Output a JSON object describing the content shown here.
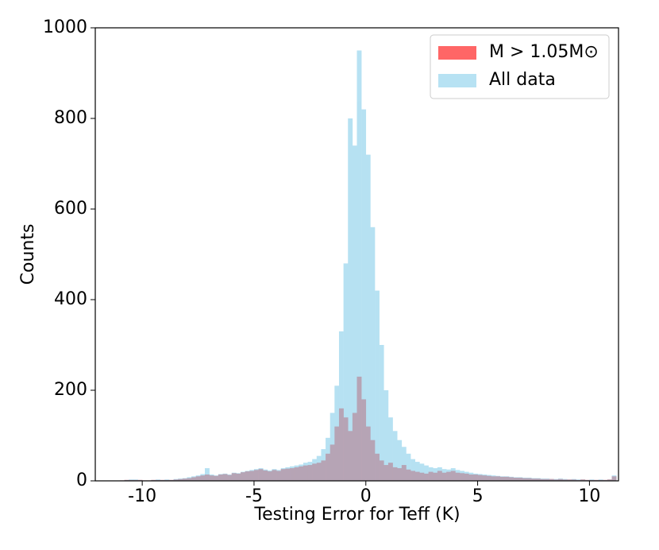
{
  "chart_data": {
    "type": "histogram",
    "x_label": "Testing Error for Teff (K)",
    "y_label": "Counts",
    "bins": [
      -11.2,
      -11.0,
      -10.8,
      -10.6,
      -10.4,
      -10.2,
      -10.0,
      -9.8,
      -9.6,
      -9.4,
      -9.2,
      -9.0,
      -8.8,
      -8.6,
      -8.4,
      -8.2,
      -8.0,
      -7.8,
      -7.6,
      -7.4,
      -7.2,
      -7.0,
      -6.8,
      -6.6,
      -6.4,
      -6.2,
      -6.0,
      -5.8,
      -5.6,
      -5.4,
      -5.2,
      -5.0,
      -4.8,
      -4.6,
      -4.4,
      -4.2,
      -4.0,
      -3.8,
      -3.6,
      -3.4,
      -3.2,
      -3.0,
      -2.8,
      -2.6,
      -2.4,
      -2.2,
      -2.0,
      -1.8,
      -1.6,
      -1.4,
      -1.2,
      -1.0,
      -0.8,
      -0.6,
      -0.4,
      -0.2,
      0.0,
      0.2,
      0.4,
      0.6,
      0.8,
      1.0,
      1.2,
      1.4,
      1.6,
      1.8,
      2.0,
      2.2,
      2.4,
      2.6,
      2.8,
      3.0,
      3.2,
      3.4,
      3.6,
      3.8,
      4.0,
      4.2,
      4.4,
      4.6,
      4.8,
      5.0,
      5.2,
      5.4,
      5.6,
      5.8,
      6.0,
      6.2,
      6.4,
      6.6,
      6.8,
      7.0,
      7.2,
      7.4,
      7.6,
      7.8,
      8.0,
      8.2,
      8.4,
      8.6,
      8.8,
      9.0,
      9.2,
      9.4,
      9.6,
      9.8,
      10.0,
      10.2,
      10.4,
      10.6,
      10.8,
      11.0,
      11.2
    ],
    "series": [
      {
        "name": "M > 1.05M⊙",
        "color": "#ff0000",
        "opacity": 0.6,
        "values": [
          0,
          1,
          2,
          2,
          2,
          2,
          1,
          1,
          2,
          2,
          2,
          2,
          2,
          3,
          4,
          5,
          6,
          8,
          10,
          12,
          14,
          12,
          11,
          14,
          15,
          13,
          17,
          16,
          19,
          21,
          22,
          24,
          26,
          23,
          21,
          24,
          22,
          26,
          27,
          28,
          30,
          32,
          34,
          35,
          38,
          40,
          45,
          60,
          80,
          120,
          160,
          140,
          110,
          150,
          230,
          180,
          120,
          90,
          60,
          45,
          35,
          40,
          30,
          28,
          35,
          25,
          22,
          20,
          18,
          16,
          20,
          18,
          22,
          18,
          20,
          22,
          18,
          17,
          16,
          14,
          14,
          13,
          12,
          11,
          10,
          10,
          9,
          9,
          8,
          7,
          7,
          6,
          6,
          5,
          5,
          4,
          4,
          4,
          3,
          4,
          3,
          3,
          3,
          2,
          3,
          2,
          2,
          2,
          2,
          2,
          3,
          10
        ]
      },
      {
        "name": "All data",
        "color": "#87ceeb",
        "opacity": 0.6,
        "values": [
          0,
          1,
          2,
          3,
          3,
          2,
          1,
          1,
          2,
          3,
          2,
          3,
          2,
          4,
          5,
          6,
          8,
          10,
          12,
          15,
          28,
          14,
          12,
          15,
          16,
          14,
          18,
          17,
          20,
          22,
          24,
          26,
          28,
          25,
          23,
          26,
          24,
          28,
          30,
          32,
          34,
          36,
          40,
          42,
          48,
          55,
          70,
          95,
          150,
          210,
          330,
          480,
          800,
          740,
          950,
          820,
          720,
          560,
          420,
          300,
          200,
          140,
          110,
          90,
          75,
          60,
          48,
          42,
          38,
          34,
          30,
          28,
          30,
          26,
          25,
          28,
          24,
          22,
          20,
          18,
          16,
          15,
          14,
          13,
          12,
          11,
          10,
          10,
          9,
          8,
          8,
          7,
          7,
          6,
          6,
          5,
          5,
          4,
          4,
          5,
          4,
          3,
          4,
          3,
          3,
          2,
          3,
          2,
          3,
          2,
          3,
          12
        ]
      }
    ],
    "xlim": [
      -12.1,
      11.3
    ],
    "xticks": [
      -10,
      -5,
      0,
      5,
      10
    ],
    "ylim": [
      0,
      1000
    ],
    "yticks": [
      0,
      200,
      400,
      600,
      800,
      1000
    ],
    "grid": false,
    "legend": "upper right"
  }
}
